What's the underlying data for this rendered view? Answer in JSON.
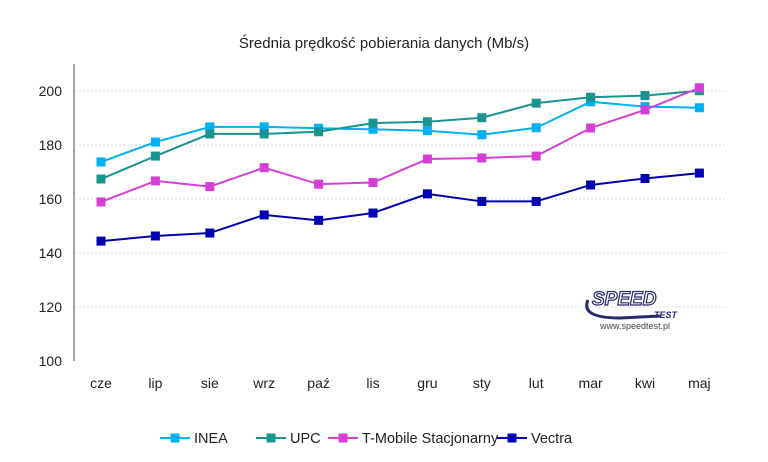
{
  "chart_data": {
    "type": "line",
    "title": "Średnia prędkość pobierania danych (Mb/s)",
    "categories": [
      "cze",
      "lip",
      "sie",
      "wrz",
      "paź",
      "lis",
      "gru",
      "sty",
      "lut",
      "mar",
      "kwi",
      "maj"
    ],
    "ylim": [
      100,
      210
    ],
    "yticks": [
      100,
      120,
      140,
      160,
      180,
      200
    ],
    "grid": true,
    "legend": "bottom",
    "series": [
      {
        "name": "INEA",
        "color": "#00b0f0",
        "values": [
          173.7,
          181.1,
          186.7,
          186.7,
          186.2,
          185.8,
          185.3,
          183.8,
          186.4,
          196.0,
          194.2,
          193.8
        ]
      },
      {
        "name": "UPC",
        "color": "#1a9490",
        "values": [
          167.4,
          175.9,
          184.1,
          184.1,
          184.9,
          188.1,
          188.6,
          190.1,
          195.5,
          197.7,
          198.3,
          200.1
        ]
      },
      {
        "name": "T-Mobile Stacjonarny",
        "color": "#d63fd6",
        "values": [
          158.9,
          166.7,
          164.6,
          171.6,
          165.5,
          166.1,
          174.8,
          175.2,
          175.9,
          186.3,
          193.0,
          201.2
        ]
      },
      {
        "name": "Vectra",
        "color": "#0000b0",
        "values": [
          144.4,
          146.3,
          147.4,
          154.1,
          152.1,
          154.8,
          161.9,
          159.1,
          159.1,
          165.2,
          167.6,
          169.6
        ]
      }
    ]
  },
  "watermark": {
    "logo": "SPEED TEST",
    "url": "www.speedtest.pl"
  }
}
